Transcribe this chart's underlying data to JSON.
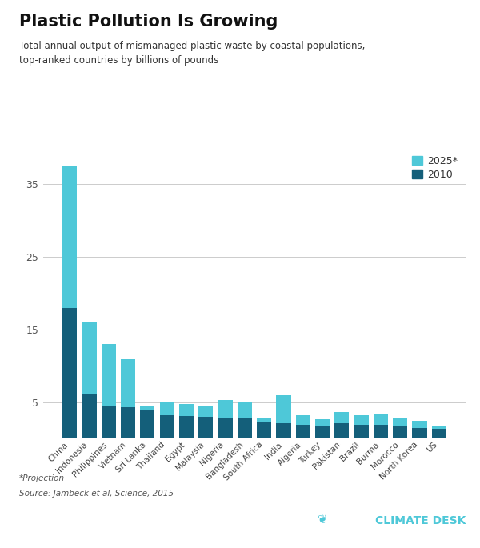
{
  "title": "Plastic Pollution Is Growing",
  "subtitle": "Total annual output of mismanaged plastic waste by coastal populations,\ntop-ranked countries by billions of pounds",
  "categories": [
    "China",
    "Indonesia",
    "Philippines",
    "Vietnam",
    "Sri Lanka",
    "Thailand",
    "Egypt",
    "Malaysia",
    "Nigeria",
    "Bangladesh",
    "South Africa",
    "India",
    "Algeria",
    "Turkey",
    "Pakistan",
    "Brazil",
    "Burma",
    "Morocco",
    "North Korea",
    "US"
  ],
  "values_2010": [
    18.0,
    6.2,
    4.5,
    4.3,
    4.0,
    3.2,
    3.1,
    3.0,
    2.7,
    2.7,
    2.3,
    2.1,
    1.9,
    1.7,
    2.1,
    1.9,
    1.9,
    1.7,
    1.4,
    1.3
  ],
  "values_2025": [
    37.5,
    16.0,
    13.0,
    10.9,
    4.5,
    5.0,
    4.7,
    4.4,
    5.3,
    5.0,
    2.8,
    6.0,
    3.2,
    2.6,
    3.6,
    3.2,
    3.4,
    2.9,
    2.4,
    1.7
  ],
  "color_2010": "#145f7a",
  "color_2025": "#4ec8d8",
  "background_color": "#ffffff",
  "yticks": [
    5,
    15,
    25,
    35
  ],
  "ylim": [
    0,
    40
  ],
  "bar_width": 0.75,
  "footnote_line1": "*Projection",
  "footnote_line2": "Source: Jambeck et al, Science, 2015"
}
